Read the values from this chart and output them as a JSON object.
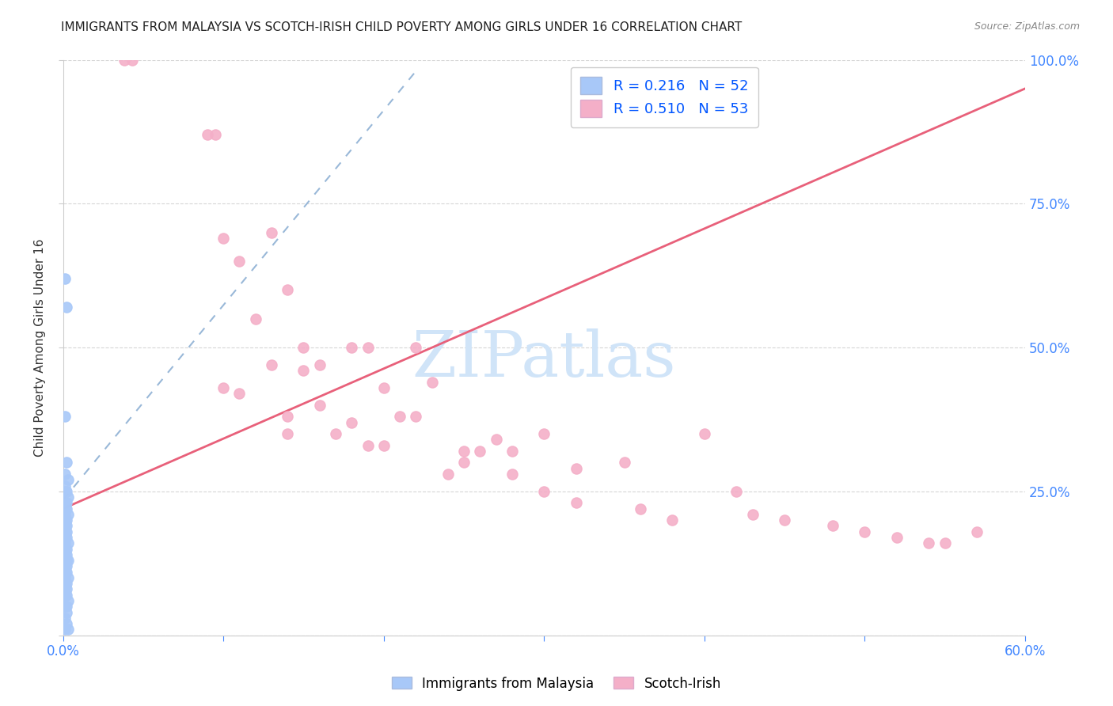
{
  "title": "IMMIGRANTS FROM MALAYSIA VS SCOTCH-IRISH CHILD POVERTY AMONG GIRLS UNDER 16 CORRELATION CHART",
  "source": "Source: ZipAtlas.com",
  "ylabel": "Child Poverty Among Girls Under 16",
  "xlim": [
    0.0,
    0.6
  ],
  "ylim": [
    0.0,
    1.0
  ],
  "xtick_positions": [
    0.0,
    0.1,
    0.2,
    0.3,
    0.4,
    0.5,
    0.6
  ],
  "xticklabels": [
    "0.0%",
    "",
    "",
    "",
    "",
    "",
    "60.0%"
  ],
  "ytick_positions": [
    0.0,
    0.25,
    0.5,
    0.75,
    1.0
  ],
  "yticklabels_right": [
    "",
    "25.0%",
    "50.0%",
    "75.0%",
    "100.0%"
  ],
  "blue_R": 0.216,
  "blue_N": 52,
  "pink_R": 0.51,
  "pink_N": 53,
  "blue_color": "#a8c8f8",
  "pink_color": "#f4afc8",
  "blue_line_color": "#99b8d8",
  "pink_line_color": "#e8607a",
  "watermark_color": "#d0e4f8",
  "grid_color": "#cccccc",
  "title_color": "#222222",
  "source_color": "#888888",
  "tick_label_color": "#4488ff",
  "ylabel_color": "#333333",
  "blue_scatter_x": [
    0.001,
    0.002,
    0.001,
    0.002,
    0.001,
    0.003,
    0.001,
    0.002,
    0.001,
    0.003,
    0.001,
    0.002,
    0.001,
    0.002,
    0.001,
    0.003,
    0.002,
    0.001,
    0.002,
    0.001,
    0.002,
    0.001,
    0.002,
    0.001,
    0.003,
    0.001,
    0.002,
    0.001,
    0.002,
    0.001,
    0.003,
    0.002,
    0.001,
    0.002,
    0.001,
    0.002,
    0.001,
    0.003,
    0.002,
    0.001,
    0.002,
    0.001,
    0.002,
    0.001,
    0.003,
    0.002,
    0.001,
    0.002,
    0.001,
    0.002,
    0.001,
    0.003
  ],
  "blue_scatter_y": [
    0.62,
    0.57,
    0.38,
    0.3,
    0.28,
    0.27,
    0.26,
    0.25,
    0.25,
    0.24,
    0.23,
    0.23,
    0.22,
    0.22,
    0.21,
    0.21,
    0.2,
    0.2,
    0.19,
    0.19,
    0.18,
    0.18,
    0.17,
    0.17,
    0.16,
    0.16,
    0.15,
    0.15,
    0.14,
    0.14,
    0.13,
    0.13,
    0.12,
    0.12,
    0.11,
    0.11,
    0.1,
    0.1,
    0.09,
    0.09,
    0.08,
    0.08,
    0.07,
    0.07,
    0.06,
    0.05,
    0.05,
    0.04,
    0.03,
    0.02,
    0.01,
    0.01
  ],
  "pink_scatter_x": [
    0.038,
    0.043,
    0.09,
    0.095,
    0.1,
    0.13,
    0.11,
    0.14,
    0.12,
    0.15,
    0.13,
    0.1,
    0.11,
    0.16,
    0.14,
    0.18,
    0.17,
    0.16,
    0.19,
    0.2,
    0.22,
    0.15,
    0.23,
    0.18,
    0.25,
    0.22,
    0.27,
    0.19,
    0.28,
    0.25,
    0.3,
    0.32,
    0.21,
    0.14,
    0.24,
    0.2,
    0.28,
    0.26,
    0.3,
    0.35,
    0.32,
    0.36,
    0.4,
    0.43,
    0.38,
    0.45,
    0.48,
    0.5,
    0.52,
    0.54,
    0.42,
    0.55,
    0.57
  ],
  "pink_scatter_y": [
    1.0,
    1.0,
    0.87,
    0.87,
    0.69,
    0.7,
    0.65,
    0.6,
    0.55,
    0.5,
    0.47,
    0.43,
    0.42,
    0.4,
    0.38,
    0.37,
    0.35,
    0.47,
    0.33,
    0.43,
    0.5,
    0.46,
    0.44,
    0.5,
    0.32,
    0.38,
    0.34,
    0.5,
    0.32,
    0.3,
    0.35,
    0.29,
    0.38,
    0.35,
    0.28,
    0.33,
    0.28,
    0.32,
    0.25,
    0.3,
    0.23,
    0.22,
    0.35,
    0.21,
    0.2,
    0.2,
    0.19,
    0.18,
    0.17,
    0.16,
    0.25,
    0.16,
    0.18
  ],
  "blue_trendline_x": [
    0.0,
    0.22
  ],
  "blue_trendline_y": [
    0.235,
    0.98
  ],
  "pink_trendline_x": [
    0.0,
    0.6
  ],
  "pink_trendline_y": [
    0.22,
    0.95
  ]
}
